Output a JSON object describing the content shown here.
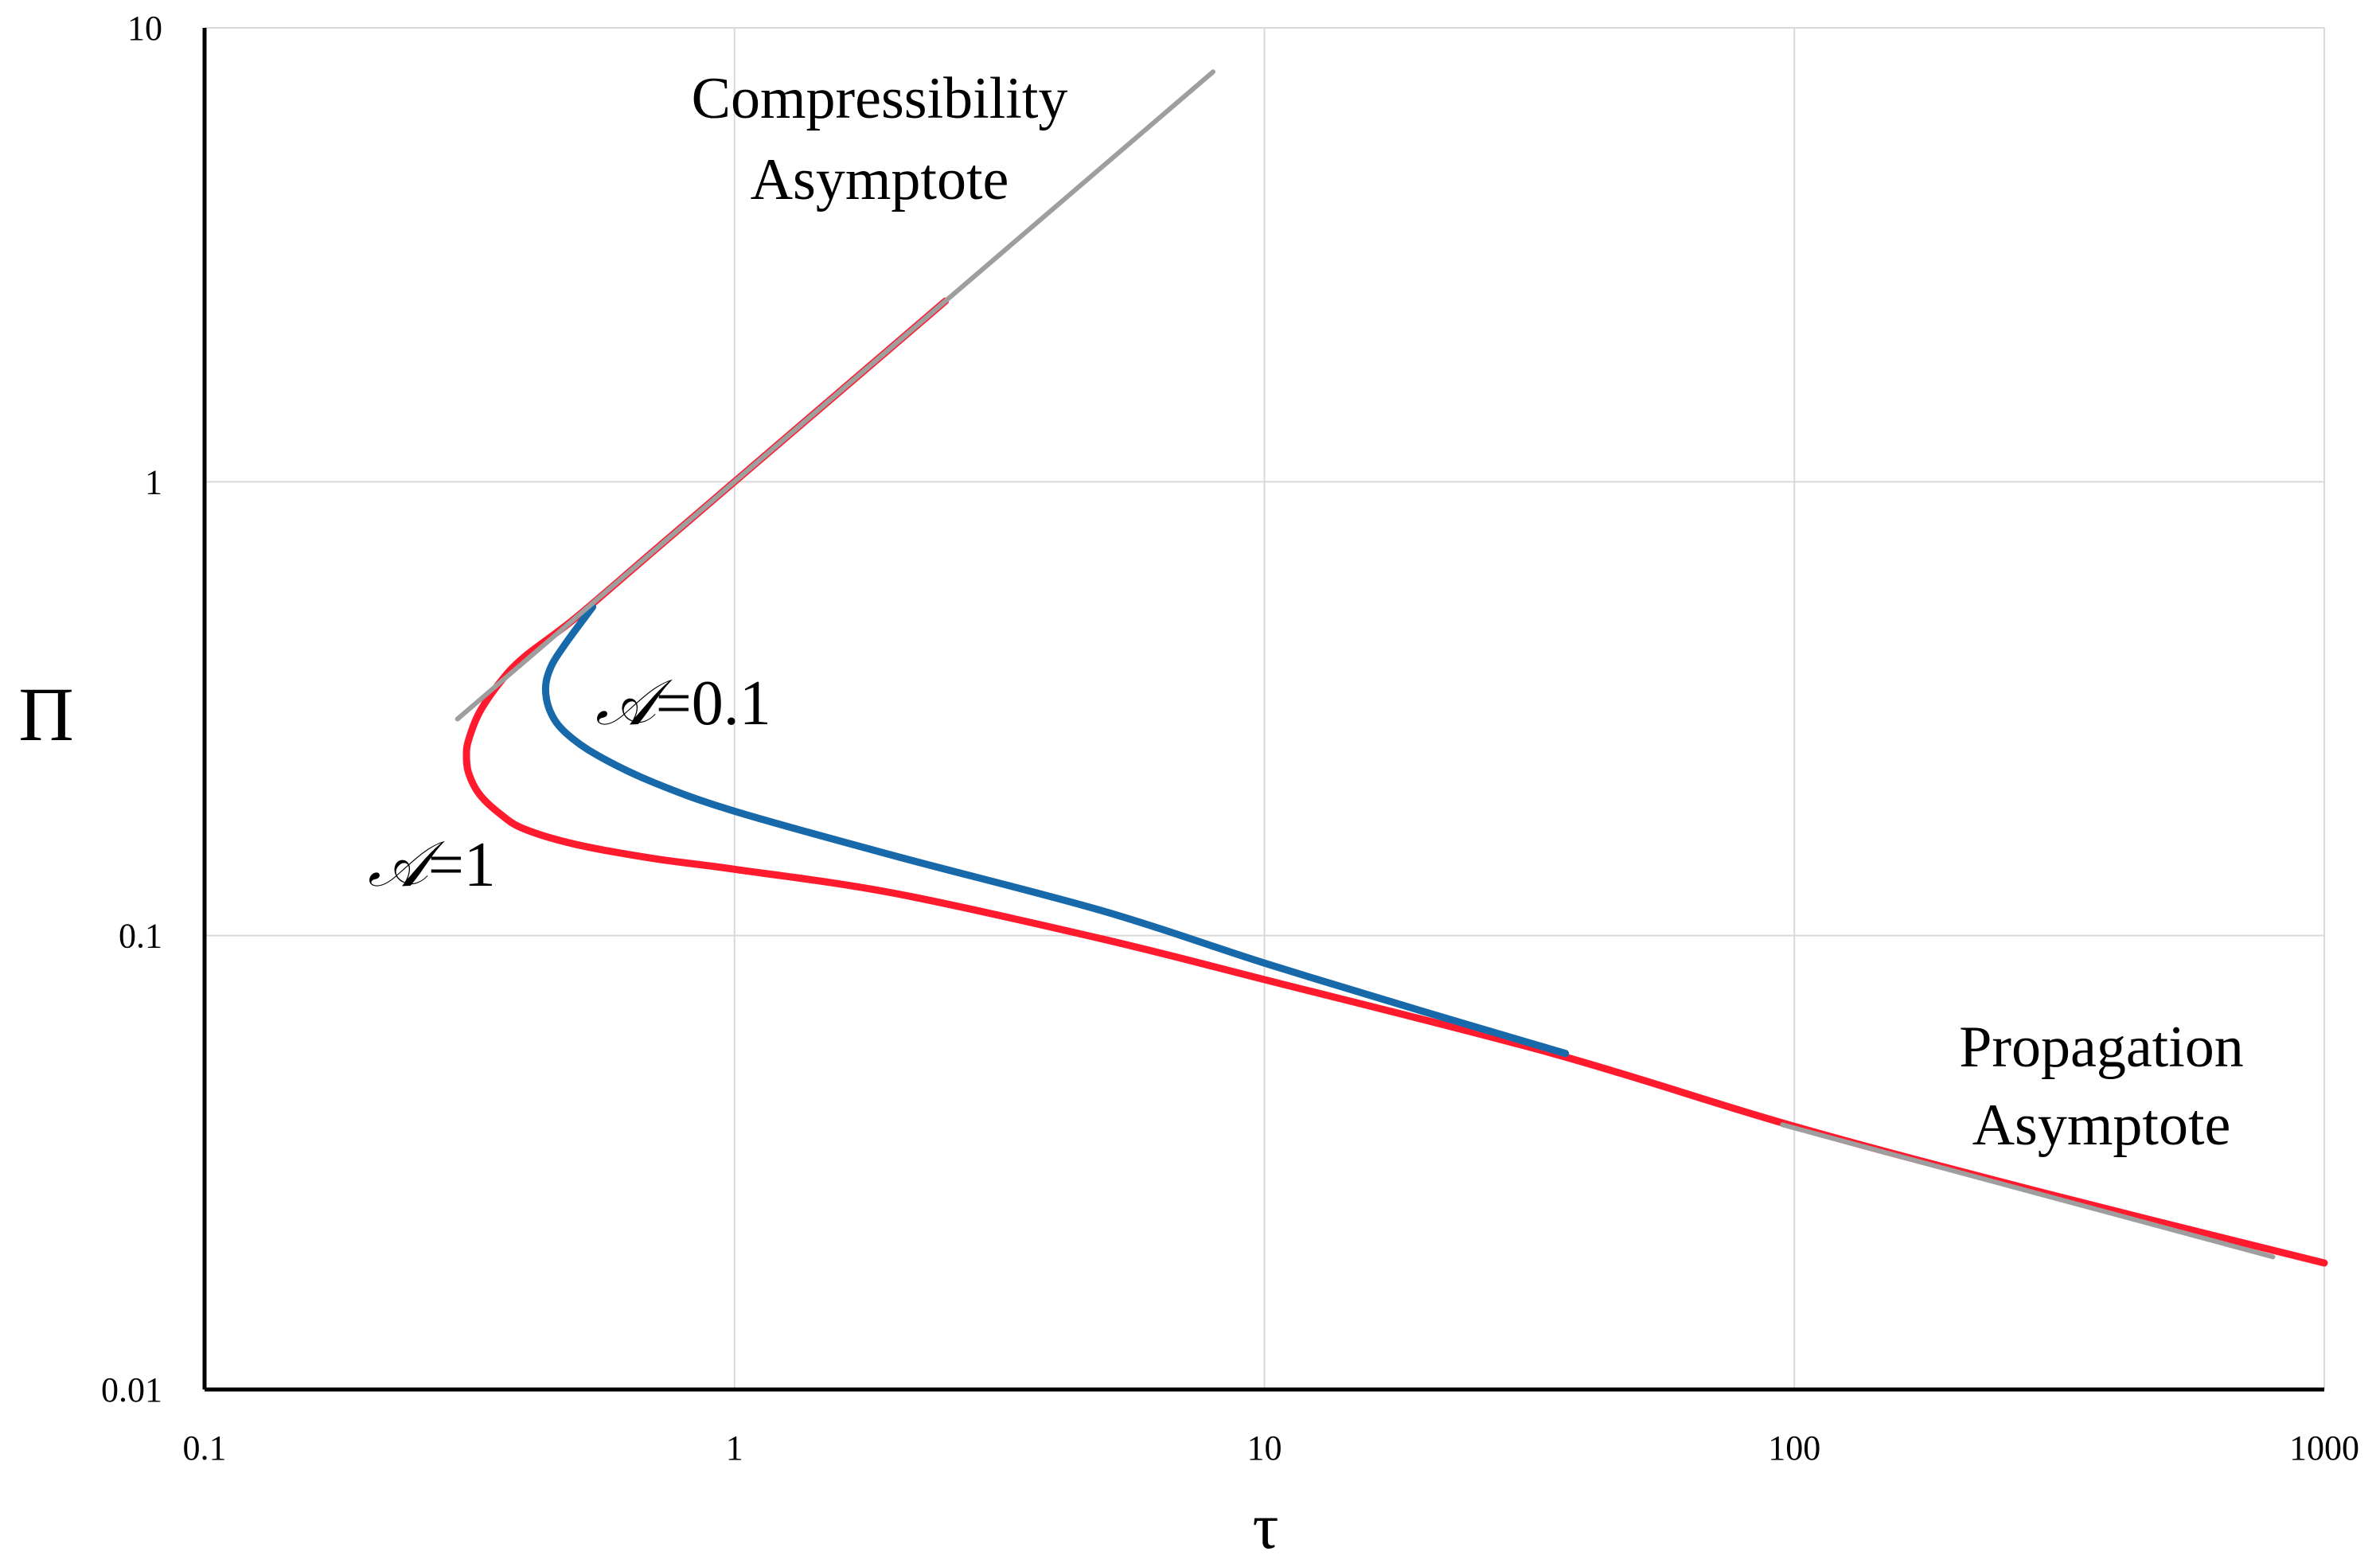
{
  "chart_data": {
    "type": "line",
    "scale": {
      "x": "log",
      "y": "log"
    },
    "xlim": [
      0.1,
      1000
    ],
    "ylim": [
      0.01,
      10
    ],
    "xlabel": "τ",
    "ylabel": "Π",
    "grid": true,
    "x_ticks": [
      {
        "value": 0.1,
        "label": "0.1"
      },
      {
        "value": 1,
        "label": "1"
      },
      {
        "value": 10,
        "label": "10"
      },
      {
        "value": 100,
        "label": "100"
      },
      {
        "value": 1000,
        "label": "1000"
      }
    ],
    "y_ticks": [
      {
        "value": 0.01,
        "label": "0.01"
      },
      {
        "value": 0.1,
        "label": "0.1"
      },
      {
        "value": 1,
        "label": "1"
      },
      {
        "value": 10,
        "label": "10"
      }
    ],
    "series": [
      {
        "name": "Compressibility Asymptote",
        "color": "#9e9e9e",
        "x": [
          0.3,
          8.0
        ],
        "y": [
          0.3,
          8.0
        ]
      },
      {
        "name": "Propagation Asymptote",
        "color": "#9e9e9e",
        "x": [
          95,
          800
        ],
        "y": [
          0.0383,
          0.0196
        ]
      },
      {
        "name": "A=1",
        "color": "#ff1a2e",
        "x": [
          2.5,
          1.5,
          1.0,
          0.7,
          0.5,
          0.4,
          0.36,
          0.33,
          0.315,
          0.312,
          0.315,
          0.33,
          0.36,
          0.4,
          0.5,
          0.7,
          1.0,
          2.0,
          5.0,
          10,
          35,
          100,
          300,
          1000
        ],
        "y": [
          2.5,
          1.5,
          1.0,
          0.7,
          0.5,
          0.41,
          0.36,
          0.31,
          0.27,
          0.25,
          0.228,
          0.205,
          0.186,
          0.172,
          0.159,
          0.148,
          0.14,
          0.124,
          0.098,
          0.08,
          0.055,
          0.038,
          0.027,
          0.019
        ]
      },
      {
        "name": "A=0.1",
        "color": "#1769aa",
        "x": [
          0.54,
          0.48,
          0.45,
          0.44,
          0.45,
          0.48,
          0.55,
          0.7,
          1.0,
          2.0,
          5.0,
          10,
          20,
          37
        ],
        "y": [
          0.53,
          0.44,
          0.39,
          0.35,
          0.31,
          0.28,
          0.25,
          0.218,
          0.188,
          0.15,
          0.113,
          0.087,
          0.068,
          0.055
        ]
      }
    ],
    "annotations": [
      {
        "id": "compressibility",
        "lines": [
          "Compressibility",
          "Asymptote"
        ]
      },
      {
        "id": "propagation",
        "lines": [
          "Propagation",
          "Asymptote"
        ]
      },
      {
        "id": "a01",
        "symbol": "𝒜",
        "text": "=0.1"
      },
      {
        "id": "a1",
        "symbol": "𝒜",
        "text": "=1"
      }
    ]
  }
}
